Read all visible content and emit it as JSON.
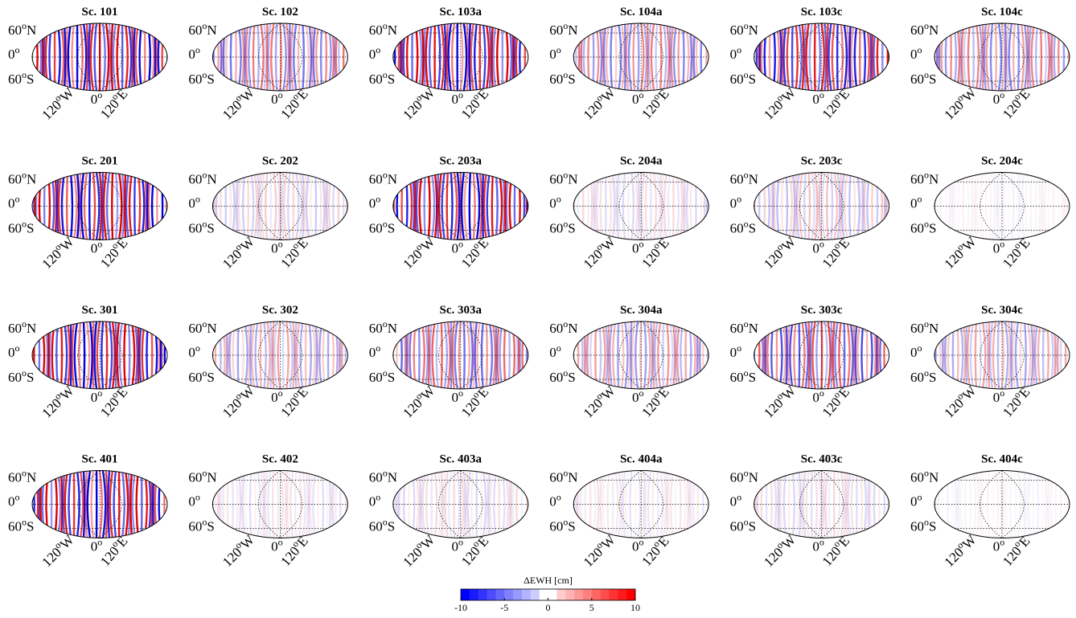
{
  "panels": [
    {
      "title": "Sc. 101"
    },
    {
      "title": "Sc. 102"
    },
    {
      "title": "Sc. 103a"
    },
    {
      "title": "Sc. 104a"
    },
    {
      "title": "Sc. 103c"
    },
    {
      "title": "Sc. 104c"
    },
    {
      "title": "Sc. 201"
    },
    {
      "title": "Sc. 202"
    },
    {
      "title": "Sc. 203a"
    },
    {
      "title": "Sc. 204a"
    },
    {
      "title": "Sc. 203c"
    },
    {
      "title": "Sc. 204c"
    },
    {
      "title": "Sc. 301"
    },
    {
      "title": "Sc. 302"
    },
    {
      "title": "Sc. 303a"
    },
    {
      "title": "Sc. 304a"
    },
    {
      "title": "Sc. 303c"
    },
    {
      "title": "Sc. 304c"
    },
    {
      "title": "Sc. 401"
    },
    {
      "title": "Sc. 402"
    },
    {
      "title": "Sc. 403a"
    },
    {
      "title": "Sc. 404a"
    },
    {
      "title": "Sc. 403c"
    },
    {
      "title": "Sc. 404c"
    }
  ],
  "lat_labels": [
    {
      "number": "60",
      "degree": "o",
      "hemisphere": "N"
    },
    {
      "number": "0",
      "degree": "o"
    },
    {
      "number": "60",
      "degree": "o",
      "hemisphere": "S"
    }
  ],
  "lon_labels": [
    {
      "number": "120",
      "degree": "o",
      "hemisphere": "W"
    },
    {
      "number": "0",
      "degree": "o"
    },
    {
      "number": "120",
      "degree": "o",
      "hemisphere": "E"
    }
  ],
  "colorbar": {
    "title": "ΔEWH [cm]",
    "lim": [
      -10,
      10
    ],
    "ticks": [
      -10,
      -5,
      0,
      5,
      10
    ],
    "colors": [
      "#0000ff",
      "#1a1aff",
      "#3333ff",
      "#4d4dff",
      "#6666ff",
      "#8080ff",
      "#9999ff",
      "#b3b3ff",
      "#ccccff",
      "#ffffff",
      "#ffffff",
      "#ffcccc",
      "#ffb3b3",
      "#ff9999",
      "#ff8080",
      "#ff6666",
      "#ff4d4d",
      "#ff3333",
      "#ff1a1a",
      "#ff0000"
    ]
  }
}
